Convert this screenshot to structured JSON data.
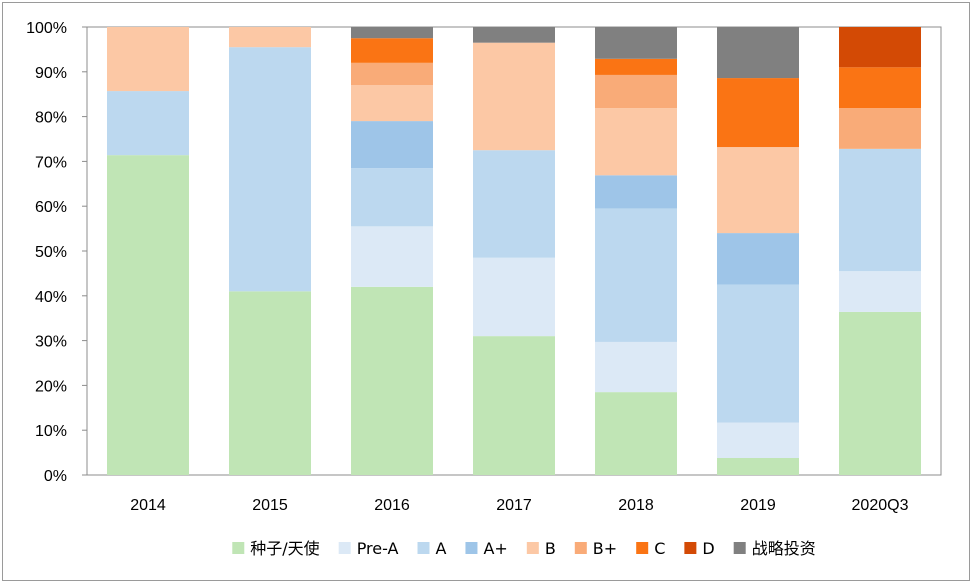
{
  "chart_data": {
    "type": "bar",
    "stacked": "percent",
    "title": "",
    "xlabel": "",
    "ylabel": "",
    "ylim": [
      0,
      100
    ],
    "y_ticks": [
      "0%",
      "10%",
      "20%",
      "30%",
      "40%",
      "50%",
      "60%",
      "70%",
      "80%",
      "90%",
      "100%"
    ],
    "grid": false,
    "legend_position": "bottom",
    "categories": [
      "2014",
      "2015",
      "2016",
      "2017",
      "2018",
      "2019",
      "2020Q3"
    ],
    "series": [
      {
        "name": "种子/天使",
        "color": "#c0e5b5",
        "values": [
          71.4,
          41,
          42,
          31,
          18.5,
          3.8,
          36.4
        ]
      },
      {
        "name": "Pre-A",
        "color": "#dce9f6",
        "values": [
          0,
          0,
          13.5,
          17.5,
          11.2,
          7.9,
          9.1
        ]
      },
      {
        "name": "A",
        "color": "#bcd8ef",
        "values": [
          14.3,
          54.5,
          13,
          24,
          29.8,
          30.8,
          27.3
        ]
      },
      {
        "name": "A+",
        "color": "#9ec5e8",
        "values": [
          0,
          0,
          10.5,
          0,
          7.4,
          11.5,
          0
        ]
      },
      {
        "name": "B",
        "color": "#fcc8a5",
        "values": [
          14.3,
          4.5,
          8,
          24,
          15,
          19.2,
          0
        ]
      },
      {
        "name": "B+",
        "color": "#f9ab78",
        "values": [
          0,
          0,
          5,
          0,
          7.4,
          0,
          9.1
        ]
      },
      {
        "name": "C",
        "color": "#fa7414",
        "values": [
          0,
          0,
          5.5,
          0,
          3.6,
          15.4,
          9.1
        ]
      },
      {
        "name": "D",
        "color": "#d34a05",
        "values": [
          0,
          0,
          0,
          0,
          0,
          0,
          9
        ]
      },
      {
        "name": "战略投资",
        "color": "#808080",
        "values": [
          0,
          0,
          2.5,
          3.5,
          7.1,
          11.4,
          0
        ]
      }
    ]
  }
}
